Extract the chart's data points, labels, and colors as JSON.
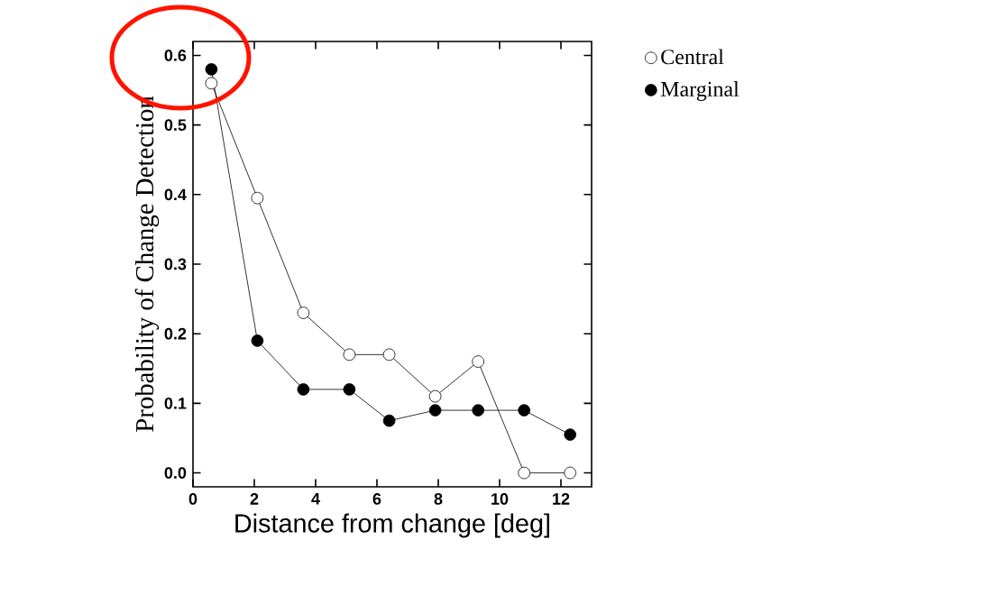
{
  "chart_data": {
    "type": "line",
    "xlabel": "Distance from change [deg]",
    "ylabel": "Probability of Change Detection",
    "xlim": [
      0,
      13
    ],
    "xticks": [
      0,
      2,
      4,
      6,
      8,
      10,
      12
    ],
    "ylim": [
      -0.02,
      0.62
    ],
    "yticks": [
      {
        "value": 0,
        "label": "0.0"
      },
      {
        "value": 0.1,
        "label": "0.1"
      },
      {
        "value": 0.2,
        "label": "0.2"
      },
      {
        "value": 0.3,
        "label": "0.3"
      },
      {
        "value": 0.4,
        "label": "0.4"
      },
      {
        "value": 0.5,
        "label": "0.5"
      },
      {
        "value": 0.6,
        "label": "0.6"
      }
    ],
    "x": [
      0.6,
      2.1,
      3.6,
      5.1,
      6.4,
      7.9,
      9.3,
      10.8,
      12.3
    ],
    "marker": "circle",
    "legend": "top right",
    "grid": false,
    "series": [
      {
        "name": "Central",
        "color": "#ffffff",
        "values": [
          0.56,
          0.395,
          0.23,
          0.17,
          0.17,
          0.11,
          0.16,
          0,
          0
        ]
      },
      {
        "name": "Marginal",
        "color": "#000000",
        "values": [
          0.58,
          0.19,
          0.12,
          0.12,
          0.075,
          0.09,
          0.09,
          0.09,
          0.055
        ]
      }
    ]
  }
}
